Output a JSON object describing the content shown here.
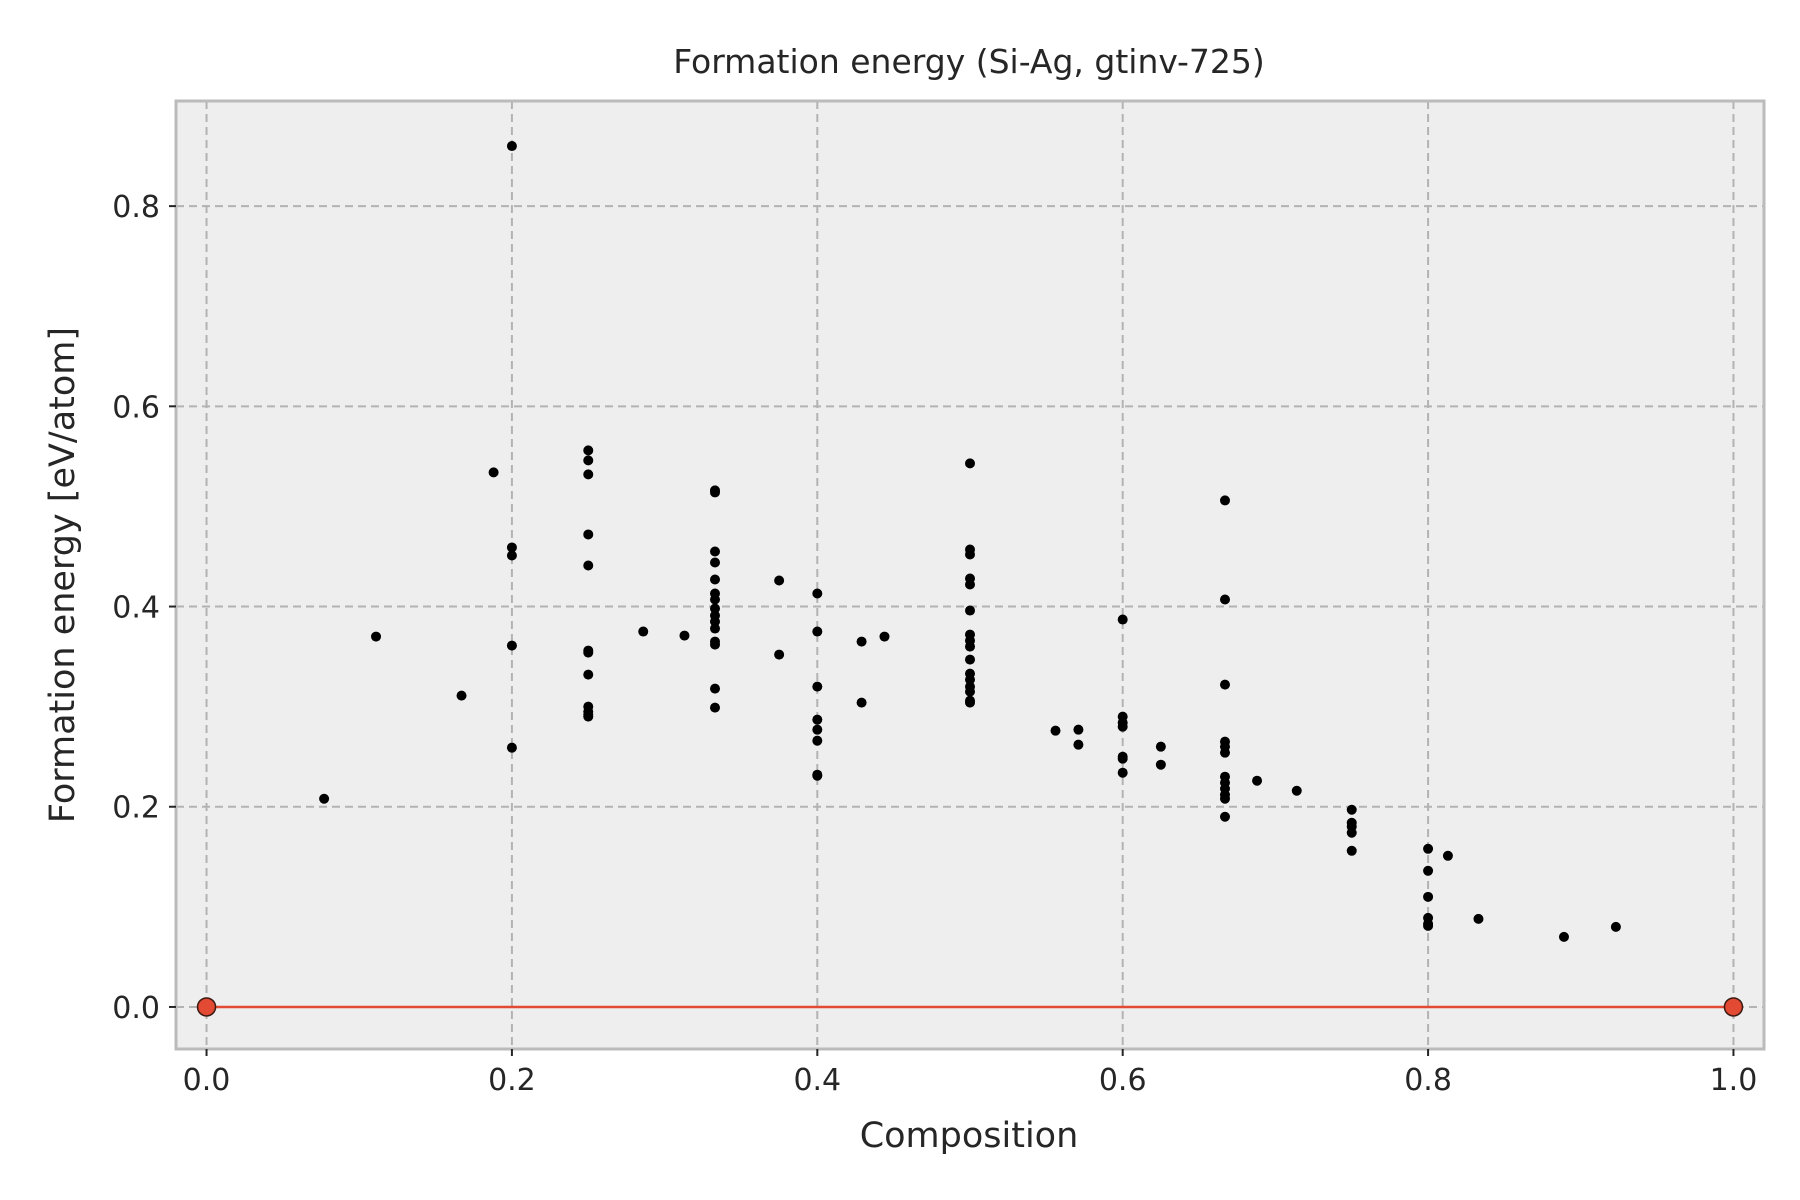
{
  "chart_data": {
    "type": "scatter",
    "title": "Formation energy (Si-Ag, gtinv-725)",
    "xlabel": "Composition",
    "ylabel": "Formation energy [eV/atom]",
    "xlim": [
      -0.02,
      1.02
    ],
    "ylim": [
      -0.042,
      0.905
    ],
    "x_ticks": [
      0.0,
      0.2,
      0.4,
      0.6,
      0.8,
      1.0
    ],
    "x_tick_labels": [
      "0.0",
      "0.2",
      "0.4",
      "0.6",
      "0.8",
      "1.0"
    ],
    "y_ticks": [
      0.0,
      0.2,
      0.4,
      0.6,
      0.8
    ],
    "y_tick_labels": [
      "0.0",
      "0.2",
      "0.4",
      "0.6",
      "0.8"
    ],
    "grid": true,
    "colors": {
      "background": "#eeeeee",
      "grid": "#b3b3b3",
      "points": "#000000",
      "hull": "#e24a33",
      "frame": "#bbbbbb",
      "text": "#262626"
    },
    "hull": {
      "x": [
        0.0,
        1.0
      ],
      "y": [
        0.0,
        0.0
      ]
    },
    "points": {
      "x": [
        0.077,
        0.111,
        0.167,
        0.188,
        0.2,
        0.2,
        0.2,
        0.2,
        0.2,
        0.25,
        0.25,
        0.25,
        0.25,
        0.25,
        0.25,
        0.25,
        0.25,
        0.25,
        0.25,
        0.25,
        0.25,
        0.286,
        0.313,
        0.333,
        0.333,
        0.333,
        0.333,
        0.333,
        0.333,
        0.333,
        0.333,
        0.333,
        0.333,
        0.333,
        0.333,
        0.333,
        0.333,
        0.333,
        0.375,
        0.375,
        0.4,
        0.4,
        0.4,
        0.4,
        0.4,
        0.4,
        0.4,
        0.4,
        0.429,
        0.429,
        0.444,
        0.5,
        0.5,
        0.5,
        0.5,
        0.5,
        0.5,
        0.5,
        0.5,
        0.5,
        0.5,
        0.5,
        0.5,
        0.5,
        0.5,
        0.5,
        0.5,
        0.556,
        0.571,
        0.571,
        0.6,
        0.6,
        0.6,
        0.6,
        0.6,
        0.6,
        0.6,
        0.625,
        0.625,
        0.667,
        0.667,
        0.667,
        0.667,
        0.667,
        0.667,
        0.667,
        0.667,
        0.667,
        0.667,
        0.667,
        0.667,
        0.688,
        0.714,
        0.75,
        0.75,
        0.75,
        0.75,
        0.75,
        0.8,
        0.8,
        0.8,
        0.8,
        0.8,
        0.8,
        0.813,
        0.833,
        0.889,
        0.923
      ],
      "y": [
        0.208,
        0.37,
        0.311,
        0.534,
        0.86,
        0.459,
        0.451,
        0.361,
        0.259,
        0.556,
        0.546,
        0.532,
        0.472,
        0.441,
        0.356,
        0.354,
        0.332,
        0.3,
        0.295,
        0.29,
        0.292,
        0.375,
        0.371,
        0.516,
        0.514,
        0.455,
        0.444,
        0.427,
        0.413,
        0.407,
        0.398,
        0.391,
        0.385,
        0.378,
        0.365,
        0.362,
        0.318,
        0.299,
        0.426,
        0.352,
        0.413,
        0.375,
        0.32,
        0.287,
        0.277,
        0.266,
        0.232,
        0.231,
        0.365,
        0.304,
        0.37,
        0.543,
        0.457,
        0.452,
        0.428,
        0.422,
        0.396,
        0.372,
        0.366,
        0.36,
        0.347,
        0.333,
        0.327,
        0.32,
        0.315,
        0.306,
        0.304,
        0.276,
        0.277,
        0.262,
        0.387,
        0.29,
        0.284,
        0.28,
        0.25,
        0.248,
        0.234,
        0.26,
        0.242,
        0.506,
        0.407,
        0.322,
        0.265,
        0.26,
        0.254,
        0.23,
        0.224,
        0.218,
        0.212,
        0.208,
        0.19,
        0.226,
        0.216,
        0.197,
        0.184,
        0.18,
        0.174,
        0.156,
        0.158,
        0.136,
        0.11,
        0.089,
        0.083,
        0.081,
        0.151,
        0.088,
        0.07,
        0.08
      ]
    }
  }
}
